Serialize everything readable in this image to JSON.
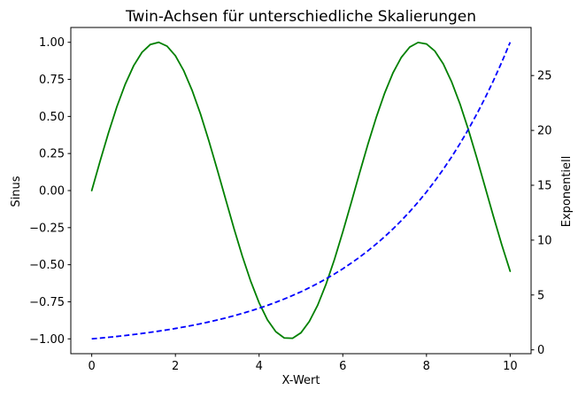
{
  "figure": {
    "background": "#ffffff"
  },
  "chart_data": {
    "type": "line",
    "title": "Twin-Achsen für unterschiedliche Skalierungen",
    "xlabel": "X-Wert",
    "grid": false,
    "legend": "none",
    "xlim": [
      -0.5,
      10.5
    ],
    "x_ticks": {
      "values": [
        0,
        2,
        4,
        6,
        8,
        10
      ],
      "labels": [
        "0",
        "2",
        "4",
        "6",
        "8",
        "10"
      ]
    },
    "axes": {
      "left": {
        "label": "Sinus",
        "color": "#008000",
        "lim": [
          -1.1,
          1.1
        ],
        "tick_values": [
          1.0,
          0.75,
          0.5,
          0.25,
          0.0,
          -0.25,
          -0.5,
          -0.75,
          -1.0
        ],
        "tick_labels": [
          "1.00",
          "0.75",
          "0.50",
          "0.25",
          "0.00",
          "−0.25",
          "−0.50",
          "−0.75",
          "−1.00"
        ]
      },
      "right": {
        "label": "Exponentiell",
        "color": "#0000ff",
        "lim": [
          -0.35,
          29.38
        ],
        "tick_values": [
          0,
          5,
          10,
          15,
          20,
          25
        ],
        "tick_labels": [
          "0",
          "5",
          "10",
          "15",
          "20",
          "25"
        ]
      }
    },
    "x": [
      0,
      0.2,
      0.4,
      0.6,
      0.8,
      1,
      1.2,
      1.4,
      1.6,
      1.8,
      2,
      2.2,
      2.4,
      2.6,
      2.8,
      3,
      3.2,
      3.4,
      3.6,
      3.8,
      4,
      4.2,
      4.4,
      4.6,
      4.8,
      5,
      5.2,
      5.4,
      5.6,
      5.8,
      6,
      6.2,
      6.4,
      6.6,
      6.8,
      7,
      7.2,
      7.4,
      7.6,
      7.8,
      8,
      8.2,
      8.4,
      8.6,
      8.8,
      9,
      9.2,
      9.4,
      9.6,
      9.8,
      10
    ],
    "series": [
      {
        "name": "Sinus",
        "formula": "sin(x)",
        "axis": "left",
        "color": "#008000",
        "line_style": "solid",
        "line_width": 1.8,
        "values": [
          0.0,
          0.199,
          0.389,
          0.565,
          0.717,
          0.841,
          0.932,
          0.985,
          1.0,
          0.974,
          0.909,
          0.808,
          0.675,
          0.516,
          0.335,
          0.141,
          -0.058,
          -0.256,
          -0.443,
          -0.612,
          -0.757,
          -0.872,
          -0.952,
          -0.994,
          -0.996,
          -0.959,
          -0.883,
          -0.773,
          -0.631,
          -0.465,
          -0.279,
          -0.083,
          0.117,
          0.312,
          0.494,
          0.657,
          0.794,
          0.899,
          0.968,
          0.999,
          0.989,
          0.941,
          0.855,
          0.734,
          0.585,
          0.412,
          0.223,
          0.025,
          -0.174,
          -0.366,
          -0.544
        ]
      },
      {
        "name": "Exponentiell",
        "formula": "exp(x/3)",
        "axis": "right",
        "color": "#0000ff",
        "line_style": "dashed",
        "line_width": 1.8,
        "values": [
          1.0,
          1.069,
          1.143,
          1.221,
          1.306,
          1.396,
          1.492,
          1.595,
          1.705,
          1.822,
          1.948,
          2.082,
          2.226,
          2.379,
          2.543,
          2.718,
          2.906,
          3.106,
          3.32,
          3.549,
          3.794,
          4.055,
          4.335,
          4.634,
          4.953,
          5.294,
          5.66,
          6.05,
          6.467,
          6.913,
          7.389,
          7.899,
          8.444,
          9.026,
          9.648,
          10.312,
          11.023,
          11.784,
          12.596,
          13.464,
          14.392,
          15.385,
          16.445,
          17.578,
          18.79,
          20.086,
          21.471,
          22.951,
          24.533,
          26.224,
          28.032
        ]
      }
    ]
  }
}
